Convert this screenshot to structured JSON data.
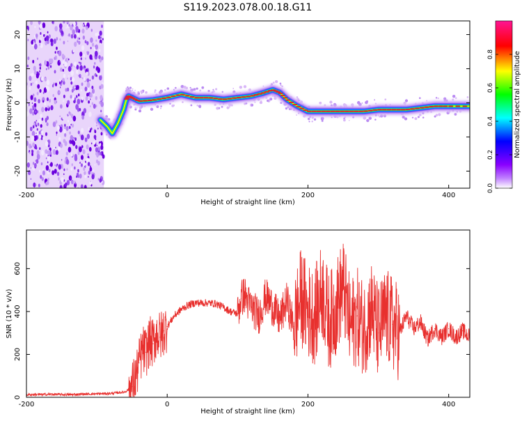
{
  "title": "S119.2023.078.00.18.G11",
  "colors": {
    "line": "#e8302e",
    "ridge_core": "#e02030",
    "axis": "#000000"
  },
  "chart_data": [
    {
      "type": "heatmap",
      "name": "spectrogram",
      "xlabel": "Height of straight line (km)",
      "ylabel": "Frequency (Hz)",
      "xlim": [
        -200,
        430
      ],
      "ylim": [
        -25,
        24
      ],
      "xticks": [
        -200,
        0,
        200,
        400
      ],
      "yticks": [
        -20,
        -10,
        0,
        10,
        20
      ],
      "colorbar": {
        "label": "Normalized spectral amplitude",
        "range": [
          0,
          1
        ],
        "ticks": [
          "0.0",
          "0.2",
          "0.4",
          "0.6",
          "0.8"
        ],
        "tick_values": [
          0.0,
          0.2,
          0.4,
          0.6,
          0.8
        ],
        "colormap": [
          "#ffffff",
          "#8a00ff",
          "#0000ff",
          "#00ffff",
          "#00ff00",
          "#ffff00",
          "#ff0000",
          "#ff1493"
        ]
      },
      "noise_region_x": [
        -200,
        -90
      ],
      "ridge": {
        "x": [
          -95,
          -85,
          -78,
          -70,
          -62,
          -58,
          -55,
          -50,
          -40,
          -20,
          0,
          20,
          40,
          60,
          80,
          100,
          120,
          135,
          150,
          160,
          170,
          185,
          200,
          220,
          240,
          260,
          280,
          300,
          320,
          340,
          360,
          380,
          400,
          430
        ],
        "y": [
          -5,
          -7,
          -9,
          -6,
          -2,
          1,
          2,
          1.5,
          0.5,
          0.8,
          1.5,
          2.5,
          1.5,
          1.5,
          1,
          1.5,
          2,
          2.8,
          3.8,
          3,
          1,
          -1,
          -2.5,
          -2.5,
          -2.5,
          -2.5,
          -2.5,
          -2,
          -2,
          -2,
          -1.5,
          -1,
          -1,
          -1
        ]
      }
    },
    {
      "type": "line",
      "name": "snr",
      "xlabel": "Height of straight line (km)",
      "ylabel": "SNR (10 * v/v)",
      "xlim": [
        -200,
        430
      ],
      "ylim": [
        0,
        780
      ],
      "xticks": [
        -200,
        0,
        200,
        400
      ],
      "yticks": [
        0,
        200,
        400,
        600
      ],
      "series": [
        {
          "x": [
            -200,
            -180,
            -160,
            -140,
            -120,
            -100,
            -80,
            -60,
            -50,
            -45,
            -40,
            -35,
            -30,
            -25,
            -20,
            -15,
            -10,
            -5,
            0,
            10,
            20,
            30,
            40,
            50,
            60,
            70,
            80,
            90,
            100,
            105,
            110,
            115,
            120,
            130,
            140,
            150,
            160,
            170,
            180,
            190,
            200,
            210,
            220,
            230,
            240,
            250,
            260,
            270,
            280,
            290,
            300,
            310,
            320,
            330,
            340,
            350,
            360,
            370,
            380,
            390,
            400,
            410,
            420,
            430
          ],
          "y": [
            12,
            13,
            14,
            12,
            15,
            16,
            18,
            25,
            50,
            90,
            160,
            220,
            210,
            260,
            250,
            300,
            280,
            310,
            330,
            380,
            410,
            430,
            440,
            440,
            440,
            435,
            420,
            400,
            390,
            460,
            480,
            440,
            420,
            380,
            470,
            420,
            360,
            450,
            330,
            470,
            400,
            380,
            500,
            350,
            420,
            520,
            330,
            380,
            320,
            420,
            300,
            380,
            340,
            300,
            380,
            320,
            350,
            270,
            320,
            280,
            320,
            280,
            310,
            280
          ]
        }
      ]
    }
  ]
}
